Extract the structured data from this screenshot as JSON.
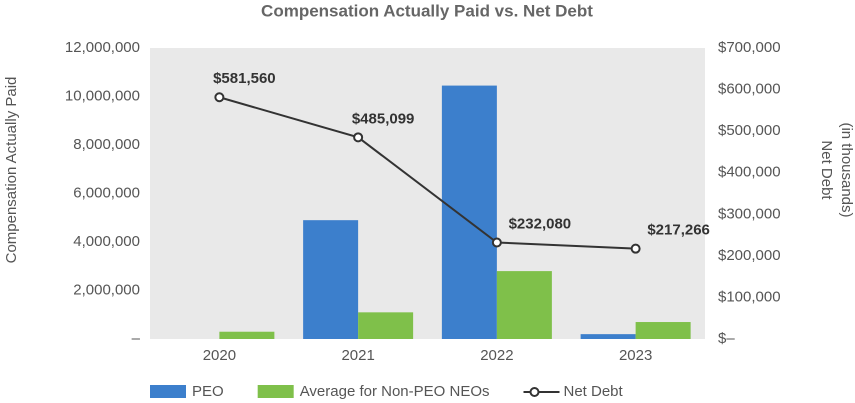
{
  "chart_data": {
    "type": "bar_line",
    "title": "Compensation Actually Paid vs. Net Debt",
    "y_label": "Compensation Actually Paid",
    "y2_label": [
      "Net Debt",
      "(in thousands)"
    ],
    "categories": [
      "2020",
      "2021",
      "2022",
      "2023"
    ],
    "series": [
      {
        "name": "PEO",
        "type": "bar",
        "color": "#3c7fcc",
        "values": [
          0,
          4900000,
          10450000,
          200000
        ]
      },
      {
        "name": "Average for Non-PEO NEOs",
        "type": "bar",
        "color": "#7fc04a",
        "values": [
          300000,
          1100000,
          2800000,
          700000
        ]
      },
      {
        "name": "Net Debt",
        "type": "line",
        "axis": "y2",
        "color": "#333333",
        "values": [
          581560,
          485099,
          232080,
          217266
        ],
        "value_labels": [
          "$581,560",
          "$485,099",
          "$232,080",
          "$217,266"
        ]
      }
    ],
    "ylim": [
      0,
      12000000
    ],
    "yticks": [
      {
        "value": 0,
        "label": "–"
      },
      {
        "value": 2000000,
        "label": "2,000,000"
      },
      {
        "value": 4000000,
        "label": "4,000,000"
      },
      {
        "value": 6000000,
        "label": "6,000,000"
      },
      {
        "value": 8000000,
        "label": "8,000,000"
      },
      {
        "value": 10000000,
        "label": "10,000,000"
      },
      {
        "value": 12000000,
        "label": "12,000,000"
      }
    ],
    "y2lim": [
      0,
      700000
    ],
    "y2ticks": [
      {
        "value": 0,
        "label": "$–"
      },
      {
        "value": 100000,
        "label": "$100,000"
      },
      {
        "value": 200000,
        "label": "$200,000"
      },
      {
        "value": 300000,
        "label": "$300,000"
      },
      {
        "value": 400000,
        "label": "$400,000"
      },
      {
        "value": 500000,
        "label": "$500,000"
      },
      {
        "value": 600000,
        "label": "$600,000"
      },
      {
        "value": 700000,
        "label": "$700,000"
      }
    ]
  }
}
